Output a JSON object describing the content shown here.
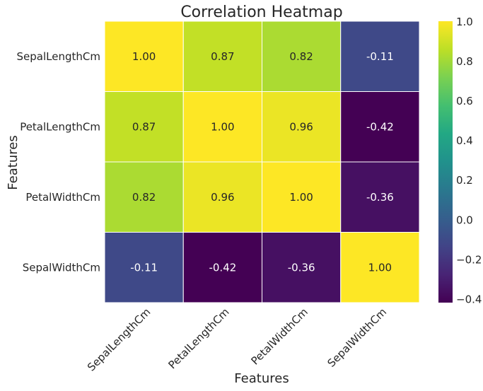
{
  "chart_data": {
    "type": "heatmap",
    "title": "Correlation Heatmap",
    "xlabel": "Features",
    "ylabel": "Features",
    "rows": [
      "SepalLengthCm",
      "PetalLengthCm",
      "PetalWidthCm",
      "SepalWidthCm"
    ],
    "columns": [
      "SepalLengthCm",
      "PetalLengthCm",
      "PetalWidthCm",
      "SepalWidthCm"
    ],
    "values": [
      [
        1.0,
        0.87,
        0.82,
        -0.11
      ],
      [
        0.87,
        1.0,
        0.96,
        -0.42
      ],
      [
        0.82,
        0.96,
        1.0,
        -0.36
      ],
      [
        -0.11,
        -0.42,
        -0.36,
        1.0
      ]
    ],
    "value_format": "0.00",
    "colormap": "viridis",
    "vmin": -0.42,
    "vmax": 1.0,
    "colorbar_ticks": [
      "1.0",
      "0.8",
      "0.6",
      "0.4",
      "0.2",
      "0.0",
      "−0.2",
      "−0.4"
    ],
    "colorbar_tick_values": [
      1.0,
      0.8,
      0.6,
      0.4,
      0.2,
      0.0,
      -0.2,
      -0.4
    ],
    "cell_border_color": "#ffffff",
    "x_tick_rotation_deg": 45
  }
}
